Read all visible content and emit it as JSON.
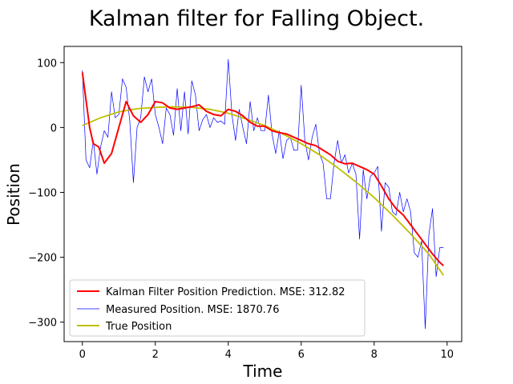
{
  "chart_data": {
    "type": "line",
    "title": "Kalman filter for Falling Object.",
    "xlabel": "Time",
    "ylabel": "Position",
    "xlim": [
      -0.5,
      10.4
    ],
    "ylim": [
      -330,
      125
    ],
    "xticks": [
      0,
      2,
      4,
      6,
      8,
      10
    ],
    "yticks": [
      100,
      0,
      -100,
      -200,
      -300
    ],
    "grid": false,
    "legend_position": "lower-left",
    "series": [
      {
        "name": "Kalman Filter Position Prediction. MSE: 312.82",
        "color": "#ff0000",
        "x": [
          0,
          0.2,
          0.3,
          0.45,
          0.6,
          0.8,
          1.0,
          1.2,
          1.4,
          1.6,
          1.8,
          2.0,
          2.2,
          2.4,
          2.6,
          2.8,
          3.0,
          3.2,
          3.4,
          3.6,
          3.8,
          4.0,
          4.2,
          4.4,
          4.6,
          4.8,
          5.0,
          5.2,
          5.4,
          5.6,
          5.8,
          6.0,
          6.2,
          6.4,
          6.6,
          6.8,
          7.0,
          7.2,
          7.4,
          7.6,
          7.8,
          8.0,
          8.2,
          8.4,
          8.6,
          8.8,
          9.0,
          9.2,
          9.4,
          9.6,
          9.8,
          9.9
        ],
        "y": [
          85,
          0,
          -25,
          -30,
          -55,
          -40,
          0,
          40,
          18,
          8,
          20,
          40,
          38,
          30,
          28,
          30,
          32,
          35,
          25,
          20,
          18,
          28,
          25,
          18,
          8,
          2,
          2,
          -5,
          -8,
          -10,
          -15,
          -20,
          -25,
          -28,
          -35,
          -42,
          -52,
          -56,
          -55,
          -60,
          -65,
          -72,
          -90,
          -110,
          -125,
          -135,
          -150,
          -165,
          -180,
          -195,
          -208,
          -213
        ]
      },
      {
        "name": "Measured Position. MSE: 1870.76",
        "color": "#0000ff",
        "x": [
          0,
          0.1,
          0.2,
          0.3,
          0.4,
          0.5,
          0.6,
          0.7,
          0.8,
          0.9,
          1.0,
          1.1,
          1.2,
          1.3,
          1.4,
          1.5,
          1.6,
          1.7,
          1.8,
          1.9,
          2.0,
          2.1,
          2.2,
          2.3,
          2.4,
          2.5,
          2.6,
          2.7,
          2.8,
          2.9,
          3.0,
          3.1,
          3.2,
          3.3,
          3.4,
          3.5,
          3.6,
          3.7,
          3.8,
          3.9,
          4.0,
          4.1,
          4.2,
          4.3,
          4.4,
          4.5,
          4.6,
          4.7,
          4.8,
          4.9,
          5.0,
          5.1,
          5.2,
          5.3,
          5.4,
          5.5,
          5.6,
          5.7,
          5.8,
          5.9,
          6.0,
          6.1,
          6.2,
          6.3,
          6.4,
          6.5,
          6.6,
          6.7,
          6.8,
          6.9,
          7.0,
          7.1,
          7.2,
          7.3,
          7.4,
          7.5,
          7.6,
          7.7,
          7.8,
          7.9,
          8.0,
          8.1,
          8.2,
          8.3,
          8.4,
          8.5,
          8.6,
          8.7,
          8.8,
          8.9,
          9.0,
          9.1,
          9.2,
          9.3,
          9.4,
          9.5,
          9.6,
          9.7,
          9.8,
          9.9
        ],
        "y": [
          88,
          -50,
          -62,
          -20,
          -72,
          -30,
          -5,
          -15,
          55,
          15,
          20,
          75,
          62,
          10,
          -85,
          0,
          15,
          78,
          55,
          75,
          20,
          0,
          -25,
          30,
          20,
          -12,
          60,
          -5,
          55,
          -10,
          72,
          50,
          -5,
          12,
          20,
          0,
          15,
          8,
          10,
          5,
          105,
          20,
          -20,
          28,
          0,
          -25,
          40,
          -5,
          15,
          -5,
          -5,
          50,
          -10,
          -40,
          -5,
          -48,
          -20,
          -15,
          -35,
          -35,
          65,
          -20,
          -50,
          -15,
          5,
          -40,
          -55,
          -110,
          -110,
          -55,
          -20,
          -55,
          -42,
          -70,
          -55,
          -72,
          -172,
          -65,
          -110,
          -75,
          -70,
          -60,
          -160,
          -85,
          -92,
          -130,
          -135,
          -100,
          -130,
          -110,
          -130,
          -193,
          -200,
          -175,
          -310,
          -165,
          -125,
          -230,
          -185,
          -185
        ]
      },
      {
        "name": "True Position",
        "color": "#bfbf00",
        "x": [
          0,
          0.5,
          1.0,
          1.5,
          2.0,
          2.5,
          3.0,
          3.5,
          4.0,
          4.5,
          5.0,
          5.5,
          6.0,
          6.5,
          7.0,
          7.5,
          8.0,
          8.5,
          9.0,
          9.5,
          9.9
        ],
        "y": [
          3,
          15,
          24,
          29,
          31,
          32,
          31,
          28,
          22,
          13,
          3,
          -10,
          -25,
          -42,
          -62,
          -84,
          -108,
          -135,
          -164,
          -195,
          -228
        ]
      }
    ]
  }
}
